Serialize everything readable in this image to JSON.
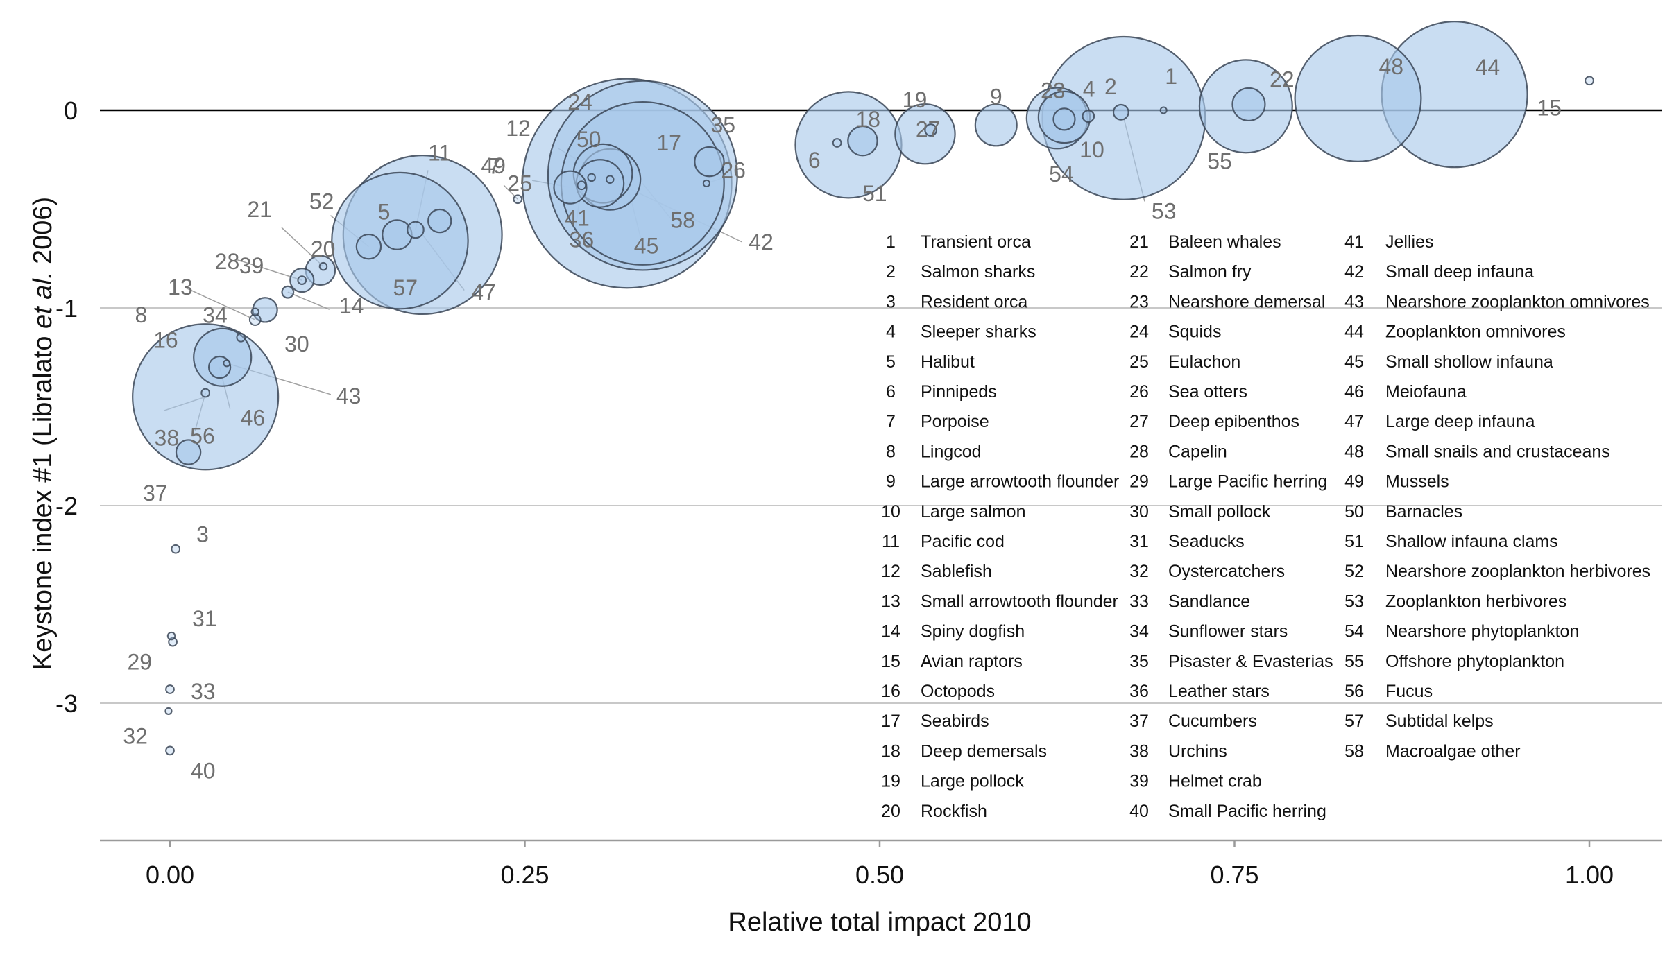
{
  "chart_data": {
    "type": "scatter",
    "title": "",
    "xlabel": "Relative total impact 2010",
    "ylabel": {
      "before": "Keystone index #1 (Libralato ",
      "italic": "et al.",
      "after": " 2006)"
    },
    "xlim": [
      -0.05,
      1.05
    ],
    "ylim": [
      -3.68,
      0.5
    ],
    "x_ticks": [
      0.0,
      0.25,
      0.5,
      0.75,
      1.0
    ],
    "x_tick_labels": [
      "0.00",
      "0.25",
      "0.50",
      "0.75",
      "1.00"
    ],
    "y_ticks": [
      0,
      -1,
      -2,
      -3
    ],
    "y_tick_labels": [
      "0",
      "-1",
      "-2",
      "-3"
    ],
    "grid": "horizontal",
    "reference_line_y": 0,
    "colors": {
      "bubble_fill": "#a8c8ea",
      "bubble_stroke": "#3a4556",
      "grid": "#c8c8c8",
      "zero_line": "#000000",
      "label": "#6f6f6f",
      "leader": "#a0a0a0"
    },
    "points": [
      {
        "id": 1,
        "x": 0.7,
        "y": 0.0,
        "size": 0.3
      },
      {
        "id": 2,
        "x": 0.67,
        "y": -0.01,
        "size": 1.7
      },
      {
        "id": 3,
        "x": 0.004,
        "y": -2.22,
        "size": 0.5
      },
      {
        "id": 4,
        "x": 0.647,
        "y": -0.03,
        "size": 1.0
      },
      {
        "id": 5,
        "x": 0.16,
        "y": -0.63,
        "size": 6.5
      },
      {
        "id": 6,
        "x": 0.47,
        "y": -0.165,
        "size": 0.5
      },
      {
        "id": 7,
        "x": 0.19,
        "y": -0.56,
        "size": 4.0
      },
      {
        "id": 8,
        "x": 0.05,
        "y": -1.15,
        "size": 0.5
      },
      {
        "id": 9,
        "x": 0.582,
        "y": -0.075,
        "size": 13.0
      },
      {
        "id": 10,
        "x": 0.63,
        "y": -0.035,
        "size": 20.0
      },
      {
        "id": 11,
        "x": 0.173,
        "y": -0.605,
        "size": 2.0
      },
      {
        "id": 12,
        "x": 0.31,
        "y": -0.35,
        "size": 28.0
      },
      {
        "id": 13,
        "x": 0.06,
        "y": -1.06,
        "size": 0.9
      },
      {
        "id": 14,
        "x": 0.083,
        "y": -0.92,
        "size": 1.0
      },
      {
        "id": 15,
        "x": 1.0,
        "y": 0.15,
        "size": 0.5
      },
      {
        "id": 16,
        "x": 0.037,
        "y": -1.25,
        "size": 25.0
      },
      {
        "id": 17,
        "x": 0.333,
        "y": -0.33,
        "size": 270.0
      },
      {
        "id": 18,
        "x": 0.488,
        "y": -0.155,
        "size": 6.5
      },
      {
        "id": 19,
        "x": 0.532,
        "y": -0.12,
        "size": 27.0
      },
      {
        "id": 20,
        "x": 0.106,
        "y": -0.81,
        "size": 6.5
      },
      {
        "id": 21,
        "x": 0.108,
        "y": -0.79,
        "size": 0.4
      },
      {
        "id": 22,
        "x": 0.76,
        "y": 0.03,
        "size": 8.0
      },
      {
        "id": 23,
        "x": 0.625,
        "y": -0.04,
        "size": 28.0
      },
      {
        "id": 24,
        "x": 0.305,
        "y": -0.32,
        "size": 26.0
      },
      {
        "id": 25,
        "x": 0.245,
        "y": -0.45,
        "size": 0.5
      },
      {
        "id": 26,
        "x": 0.378,
        "y": -0.37,
        "size": 0.3
      },
      {
        "id": 27,
        "x": 0.536,
        "y": -0.1,
        "size": 1.0
      },
      {
        "id": 28,
        "x": 0.093,
        "y": -0.86,
        "size": 4.2
      },
      {
        "id": 29,
        "x": 0.002,
        "y": -2.69,
        "size": 0.5
      },
      {
        "id": 30,
        "x": 0.067,
        "y": -1.01,
        "size": 4.5
      },
      {
        "id": 31,
        "x": 0.001,
        "y": -2.66,
        "size": 0.4
      },
      {
        "id": 32,
        "x": -0.001,
        "y": -3.04,
        "size": 0.3
      },
      {
        "id": 33,
        "x": 0.0,
        "y": -2.93,
        "size": 0.5
      },
      {
        "id": 34,
        "x": 0.06,
        "y": -1.02,
        "size": 0.4
      },
      {
        "id": 35,
        "x": 0.38,
        "y": -0.26,
        "size": 6.5
      },
      {
        "id": 36,
        "x": 0.29,
        "y": -0.38,
        "size": 0.5
      },
      {
        "id": 37,
        "x": 0.013,
        "y": -1.73,
        "size": 4.5
      },
      {
        "id": 38,
        "x": 0.025,
        "y": -1.45,
        "size": 160.0
      },
      {
        "id": 39,
        "x": 0.093,
        "y": -0.86,
        "size": 0.5
      },
      {
        "id": 40,
        "x": 0.0,
        "y": -3.24,
        "size": 0.5
      },
      {
        "id": 41,
        "x": 0.303,
        "y": -0.37,
        "size": 17.0
      },
      {
        "id": 42,
        "x": 0.31,
        "y": -0.35,
        "size": 0.4
      },
      {
        "id": 43,
        "x": 0.04,
        "y": -1.28,
        "size": 0.3
      },
      {
        "id": 44,
        "x": 0.905,
        "y": 0.08,
        "size": 160.0
      },
      {
        "id": 45,
        "x": 0.322,
        "y": -0.37,
        "size": 330.0
      },
      {
        "id": 46,
        "x": 0.035,
        "y": -1.3,
        "size": 3.5
      },
      {
        "id": 47,
        "x": 0.178,
        "y": -0.63,
        "size": 190.0
      },
      {
        "id": 48,
        "x": 0.837,
        "y": 0.06,
        "size": 120.0
      },
      {
        "id": 49,
        "x": 0.282,
        "y": -0.39,
        "size": 8.0
      },
      {
        "id": 50,
        "x": 0.297,
        "y": -0.34,
        "size": 0.4
      },
      {
        "id": 51,
        "x": 0.478,
        "y": -0.175,
        "size": 85.0
      },
      {
        "id": 52,
        "x": 0.14,
        "y": -0.69,
        "size": 4.5
      },
      {
        "id": 53,
        "x": 0.672,
        "y": -0.04,
        "size": 200.0
      },
      {
        "id": 54,
        "x": 0.63,
        "y": -0.045,
        "size": 3.5
      },
      {
        "id": 55,
        "x": 0.758,
        "y": 0.02,
        "size": 65.0
      },
      {
        "id": 56,
        "x": 0.025,
        "y": -1.43,
        "size": 0.5
      },
      {
        "id": 57,
        "x": 0.162,
        "y": -0.66,
        "size": 140.0
      },
      {
        "id": 58,
        "x": 0.333,
        "y": -0.37,
        "size": 200.0
      }
    ],
    "legend": [
      {
        "n": "1",
        "name": "Transient orca"
      },
      {
        "n": "2",
        "name": "Salmon sharks"
      },
      {
        "n": "3",
        "name": "Resident orca"
      },
      {
        "n": "4",
        "name": "Sleeper sharks"
      },
      {
        "n": "5",
        "name": "Halibut"
      },
      {
        "n": "6",
        "name": "Pinnipeds"
      },
      {
        "n": "7",
        "name": "Porpoise"
      },
      {
        "n": "8",
        "name": "Lingcod"
      },
      {
        "n": "9",
        "name": "Large arrowtooth flounder"
      },
      {
        "n": "10",
        "name": "Large salmon"
      },
      {
        "n": "11",
        "name": "Pacific cod"
      },
      {
        "n": "12",
        "name": "Sablefish"
      },
      {
        "n": "13",
        "name": "Small arrowtooth flounder"
      },
      {
        "n": "14",
        "name": "Spiny dogfish"
      },
      {
        "n": "15",
        "name": "Avian raptors"
      },
      {
        "n": "16",
        "name": "Octopods"
      },
      {
        "n": "17",
        "name": "Seabirds"
      },
      {
        "n": "18",
        "name": "Deep demersals"
      },
      {
        "n": "19",
        "name": "Large pollock"
      },
      {
        "n": "20",
        "name": "Rockfish"
      },
      {
        "n": "21",
        "name": "Baleen whales"
      },
      {
        "n": "22",
        "name": "Salmon fry"
      },
      {
        "n": "23",
        "name": "Nearshore demersal"
      },
      {
        "n": "24",
        "name": "Squids"
      },
      {
        "n": "25",
        "name": "Eulachon"
      },
      {
        "n": "26",
        "name": "Sea otters"
      },
      {
        "n": "27",
        "name": "Deep epibenthos"
      },
      {
        "n": "28",
        "name": "Capelin"
      },
      {
        "n": "29",
        "name": "Large Pacific herring"
      },
      {
        "n": "30",
        "name": "Small pollock"
      },
      {
        "n": "31",
        "name": "Seaducks"
      },
      {
        "n": "32",
        "name": "Oystercatchers"
      },
      {
        "n": "33",
        "name": "Sandlance"
      },
      {
        "n": "34",
        "name": "Sunflower stars"
      },
      {
        "n": "35",
        "name": "Pisaster & Evasterias"
      },
      {
        "n": "36",
        "name": "Leather stars"
      },
      {
        "n": "37",
        "name": "Cucumbers"
      },
      {
        "n": "38",
        "name": "Urchins"
      },
      {
        "n": "39",
        "name": "Helmet crab"
      },
      {
        "n": "40",
        "name": "Small Pacific herring"
      },
      {
        "n": "41",
        "name": "Jellies"
      },
      {
        "n": "42",
        "name": "Small deep infauna"
      },
      {
        "n": "43",
        "name": "Nearshore zooplankton omnivores"
      },
      {
        "n": "44",
        "name": "Zooplankton omnivores"
      },
      {
        "n": "45",
        "name": "Small shollow infauna"
      },
      {
        "n": "46",
        "name": "Meiofauna"
      },
      {
        "n": "47",
        "name": "Large deep infauna"
      },
      {
        "n": "48",
        "name": "Small snails and crustaceans"
      },
      {
        "n": "49",
        "name": "Mussels"
      },
      {
        "n": "50",
        "name": "Barnacles"
      },
      {
        "n": "51",
        "name": "Shallow infauna clams"
      },
      {
        "n": "52",
        "name": "Nearshore zooplankton herbivores"
      },
      {
        "n": "53",
        "name": "Zooplankton herbivores"
      },
      {
        "n": "54",
        "name": "Nearshore phytoplankton"
      },
      {
        "n": "55",
        "name": "Offshore phytoplankton"
      },
      {
        "n": "56",
        "name": "Fucus"
      },
      {
        "n": "57",
        "name": "Subtidal kelps"
      },
      {
        "n": "58",
        "name": "Macroalgae other"
      }
    ]
  }
}
